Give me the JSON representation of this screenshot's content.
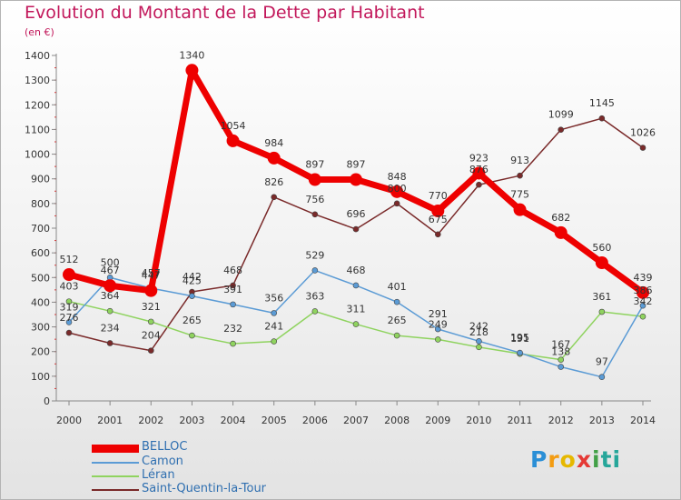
{
  "title": "Evolution du Montant de la Dette par Habitant",
  "unit_label": "(en €)",
  "logo_text": "Proxiti",
  "chart_data": {
    "type": "line",
    "title": "Evolution du Montant de la Dette par Habitant",
    "subtitle": "(en €)",
    "xlabel": "",
    "ylabel": "",
    "x": [
      "2000",
      "2001",
      "2002",
      "2003",
      "2004",
      "2005",
      "2006",
      "2007",
      "2008",
      "2009",
      "2010",
      "2011",
      "2012",
      "2013",
      "2014"
    ],
    "ylim": [
      0,
      1400
    ],
    "yticks": [
      0,
      100,
      200,
      300,
      400,
      500,
      600,
      700,
      800,
      900,
      1000,
      1100,
      1200,
      1300,
      1400
    ],
    "grid": false,
    "legend_position": "bottom-left",
    "series": [
      {
        "name": "BELLOC",
        "color": "#ee0000",
        "width": 7,
        "marker": 7,
        "values": [
          512,
          467,
          447,
          1340,
          1054,
          984,
          897,
          897,
          848,
          770,
          923,
          775,
          682,
          560,
          439
        ]
      },
      {
        "name": "Camon",
        "color": "#5b9bd5",
        "width": 1.5,
        "marker": 3,
        "values": [
          319,
          500,
          457,
          425,
          391,
          356,
          529,
          468,
          401,
          291,
          242,
          195,
          138,
          97,
          386
        ]
      },
      {
        "name": "Léran",
        "color": "#8fd35f",
        "width": 1.5,
        "marker": 3,
        "values": [
          403,
          364,
          321,
          265,
          232,
          241,
          363,
          311,
          265,
          249,
          218,
          191,
          167,
          361,
          342
        ]
      },
      {
        "name": "Saint-Quentin-la-Tour",
        "color": "#7a2a2a",
        "width": 1.5,
        "marker": 3,
        "values": [
          276,
          234,
          204,
          442,
          468,
          826,
          756,
          696,
          800,
          675,
          876,
          913,
          1099,
          1145,
          1026
        ]
      }
    ]
  }
}
